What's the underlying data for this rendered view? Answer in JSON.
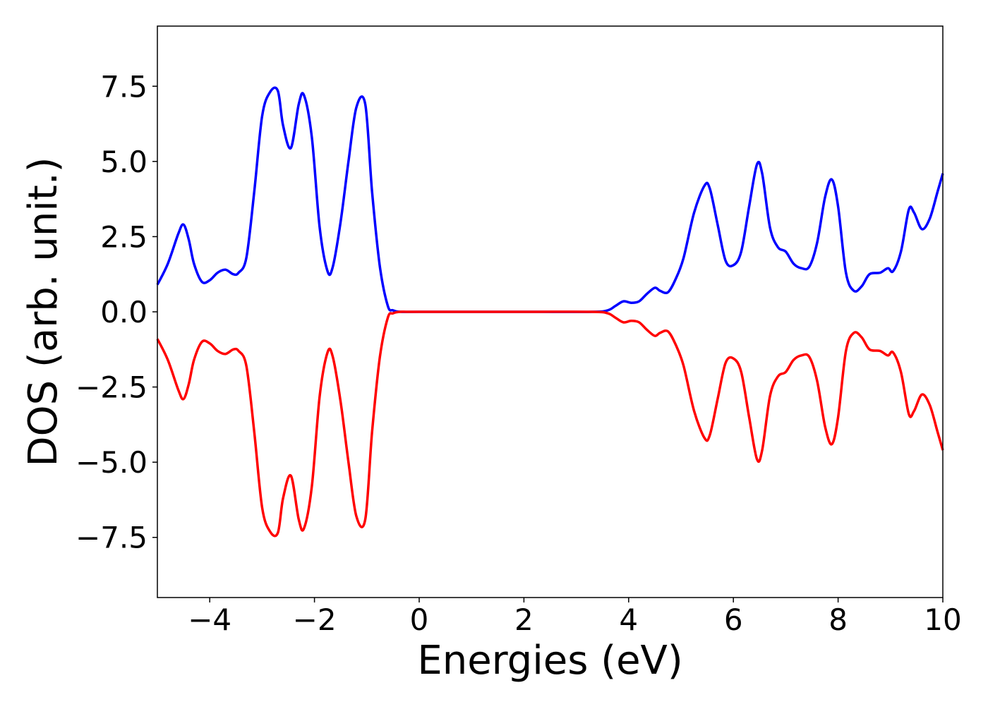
{
  "chart_data": {
    "type": "line",
    "title": "",
    "xlabel": "Energies (eV)",
    "ylabel": "DOS (arb. unit.)",
    "xlim": [
      -5,
      10
    ],
    "ylim": [
      -9.5,
      9.5
    ],
    "xticks": [
      -4,
      -2,
      0,
      2,
      4,
      6,
      8,
      10
    ],
    "xtick_labels": [
      "−4",
      "−2",
      "0",
      "2",
      "4",
      "6",
      "8",
      "10"
    ],
    "yticks": [
      -7.5,
      -5.0,
      -2.5,
      0.0,
      2.5,
      5.0,
      7.5
    ],
    "ytick_labels": [
      "−7.5",
      "−5.0",
      "−2.5",
      "0.0",
      "2.5",
      "5.0",
      "7.5"
    ],
    "grid": false,
    "legend": "none",
    "series": [
      {
        "color": "#0000ff",
        "x": [
          -5.0,
          -4.8,
          -4.6,
          -4.5,
          -4.4,
          -4.3,
          -4.15,
          -4.0,
          -3.85,
          -3.7,
          -3.55,
          -3.45,
          -3.3,
          -3.15,
          -3.0,
          -2.85,
          -2.7,
          -2.6,
          -2.45,
          -2.3,
          -2.2,
          -2.05,
          -1.9,
          -1.75,
          -1.65,
          -1.5,
          -1.35,
          -1.2,
          -1.03,
          -0.9,
          -0.75,
          -0.6,
          -0.5,
          -0.35,
          0.0,
          2.0,
          3.3,
          3.6,
          3.75,
          3.9,
          4.05,
          4.2,
          4.35,
          4.5,
          4.6,
          4.75,
          4.9,
          5.05,
          5.25,
          5.45,
          5.55,
          5.7,
          5.85,
          6.0,
          6.15,
          6.3,
          6.45,
          6.55,
          6.7,
          6.85,
          7.0,
          7.15,
          7.3,
          7.45,
          7.6,
          7.75,
          7.88,
          8.0,
          8.15,
          8.3,
          8.45,
          8.6,
          8.8,
          8.95,
          9.05,
          9.2,
          9.35,
          9.45,
          9.6,
          9.75,
          9.9,
          10.0
        ],
        "y": [
          0.9,
          1.6,
          2.6,
          2.9,
          2.4,
          1.6,
          1.0,
          1.05,
          1.3,
          1.4,
          1.25,
          1.3,
          1.8,
          4.0,
          6.5,
          7.3,
          7.35,
          6.2,
          5.45,
          6.9,
          7.2,
          5.8,
          2.8,
          1.35,
          1.5,
          3.0,
          5.0,
          6.8,
          6.9,
          4.0,
          1.5,
          0.2,
          0.05,
          0.0,
          0.0,
          0.0,
          0.0,
          0.05,
          0.2,
          0.35,
          0.3,
          0.35,
          0.6,
          0.8,
          0.7,
          0.65,
          1.1,
          1.8,
          3.3,
          4.2,
          4.1,
          2.9,
          1.7,
          1.55,
          2.0,
          3.5,
          4.9,
          4.6,
          2.8,
          2.15,
          2.0,
          1.6,
          1.45,
          1.5,
          2.3,
          3.8,
          4.4,
          3.5,
          1.3,
          0.7,
          0.85,
          1.25,
          1.3,
          1.45,
          1.35,
          2.0,
          3.4,
          3.3,
          2.75,
          3.1,
          4.0,
          4.6
        ]
      },
      {
        "color": "#ff0000",
        "x": [
          -5.0,
          -4.8,
          -4.6,
          -4.5,
          -4.4,
          -4.3,
          -4.15,
          -4.0,
          -3.85,
          -3.7,
          -3.55,
          -3.45,
          -3.3,
          -3.15,
          -3.0,
          -2.85,
          -2.7,
          -2.6,
          -2.45,
          -2.3,
          -2.2,
          -2.05,
          -1.9,
          -1.75,
          -1.65,
          -1.5,
          -1.35,
          -1.2,
          -1.03,
          -0.9,
          -0.75,
          -0.6,
          -0.5,
          -0.35,
          0.0,
          2.0,
          3.3,
          3.6,
          3.75,
          3.9,
          4.05,
          4.2,
          4.35,
          4.5,
          4.6,
          4.75,
          4.9,
          5.05,
          5.25,
          5.45,
          5.55,
          5.7,
          5.85,
          6.0,
          6.15,
          6.3,
          6.45,
          6.55,
          6.7,
          6.85,
          7.0,
          7.15,
          7.3,
          7.45,
          7.6,
          7.75,
          7.88,
          8.0,
          8.15,
          8.3,
          8.45,
          8.6,
          8.8,
          8.95,
          9.05,
          9.2,
          9.35,
          9.45,
          9.6,
          9.75,
          9.9,
          10.0
        ],
        "y": [
          -0.9,
          -1.6,
          -2.6,
          -2.9,
          -2.4,
          -1.6,
          -1.0,
          -1.05,
          -1.3,
          -1.4,
          -1.25,
          -1.3,
          -1.8,
          -4.0,
          -6.5,
          -7.3,
          -7.35,
          -6.2,
          -5.45,
          -6.9,
          -7.2,
          -5.8,
          -2.8,
          -1.35,
          -1.5,
          -3.0,
          -5.0,
          -6.8,
          -6.9,
          -4.0,
          -1.5,
          -0.2,
          -0.05,
          0.0,
          0.0,
          0.0,
          0.0,
          -0.05,
          -0.2,
          -0.35,
          -0.3,
          -0.35,
          -0.6,
          -0.8,
          -0.7,
          -0.65,
          -1.1,
          -1.8,
          -3.3,
          -4.2,
          -4.1,
          -2.9,
          -1.7,
          -1.55,
          -2.0,
          -3.5,
          -4.9,
          -4.6,
          -2.8,
          -2.15,
          -2.0,
          -1.6,
          -1.45,
          -1.5,
          -2.3,
          -3.8,
          -4.4,
          -3.5,
          -1.3,
          -0.7,
          -0.85,
          -1.25,
          -1.3,
          -1.45,
          -1.35,
          -2.0,
          -3.4,
          -3.3,
          -2.75,
          -3.1,
          -4.0,
          -4.6
        ]
      }
    ]
  }
}
